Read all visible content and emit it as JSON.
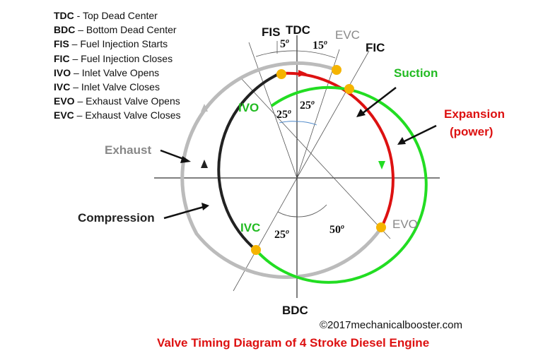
{
  "legend": [
    {
      "abbr": "TDC",
      "sep": " - ",
      "text": "Top Dead Center"
    },
    {
      "abbr": "BDC",
      "sep": " – ",
      "text": "Bottom Dead Center"
    },
    {
      "abbr": "FIS",
      "sep": " – ",
      "text": "Fuel Injection Starts"
    },
    {
      "abbr": "FIC",
      "sep": " – ",
      "text": "Fuel Injection Closes"
    },
    {
      "abbr": "IVO",
      "sep": " – ",
      "text": "Inlet Valve Opens"
    },
    {
      "abbr": "IVC",
      "sep": " – ",
      "text": "Inlet Valve Closes"
    },
    {
      "abbr": "EVO",
      "sep": " – ",
      "text": "Exhaust Valve Opens"
    },
    {
      "abbr": "EVC",
      "sep": " – ",
      "text": "Exhaust Valve Closes"
    }
  ],
  "labels": {
    "tdc": "TDC",
    "bdc": "BDC",
    "fis": "FIS",
    "fic": "FIC",
    "evc": "EVC",
    "evo": "EVO",
    "ivo": "IVO",
    "ivc": "IVC",
    "suction": "Suction",
    "expansion": "Expansion",
    "power": "(power)",
    "exhaust": "Exhaust",
    "compression": "Compression"
  },
  "angles": {
    "fis": "5",
    "evc": "15",
    "ivo": "25",
    "ivo_b": "25",
    "ivc": "25",
    "evo": "50",
    "unit": "o"
  },
  "copyright": "©2017mechanicalbooster.com",
  "caption": "Valve Timing Diagram of 4 Stroke Diesel Engine",
  "colors": {
    "suction": "#22dd22",
    "expansion": "#dd1111",
    "exhaust": "#bbbbbb",
    "compression": "#222222",
    "dot": "#f5b400",
    "caption": "#dd1111",
    "label_gray": "#888888"
  }
}
